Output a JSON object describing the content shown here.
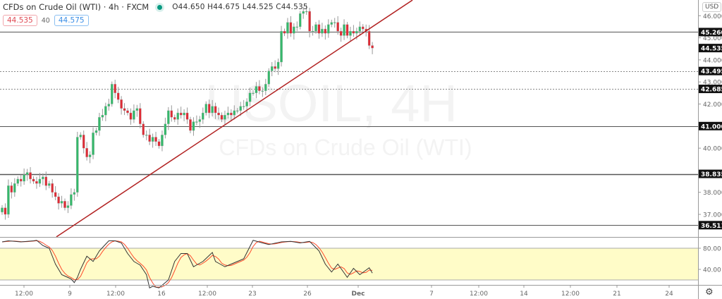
{
  "header": {
    "symbol_title": "CFDs on Crude Oil (WTI) · 4h · FXCM",
    "status_color": "#089981",
    "ohlc": "O44.650 H44.675 L44.525 C44.535",
    "sell_price": "44.535",
    "spread": "40",
    "buy_price": "44.575",
    "currency": "USD"
  },
  "watermark": {
    "symbol": "USOIL, 4H",
    "description": "CFDs on Crude Oil (WTI)"
  },
  "colors": {
    "up": "#35b86b",
    "down": "#de2b35",
    "trendline": "#b22222",
    "stoch_k": "#333333",
    "stoch_d": "#ff4b2b",
    "stoch_band": "#fffcc8"
  },
  "chart_data": [
    {
      "type": "candlestick",
      "price_axis": {
        "ticks": [
          "46.000",
          "45.000",
          "44.000",
          "43.000",
          "42.000",
          "40.000",
          "38.000",
          "37.000"
        ],
        "tick_values": [
          46,
          45,
          44,
          43,
          42,
          40,
          38,
          37
        ]
      },
      "time_axis": {
        "labels": [
          "12:00",
          "9",
          "12:00",
          "16",
          "12:00",
          "23",
          "26",
          "Dec",
          "7",
          "12:00",
          "14",
          "12:00",
          "21",
          "24"
        ]
      },
      "close": [
        37.3,
        37.0,
        38.3,
        38.0,
        38.4,
        38.6,
        38.5,
        38.8,
        38.9,
        38.6,
        38.5,
        38.4,
        38.6,
        38.7,
        38.3,
        38.4,
        38.0,
        37.8,
        37.5,
        37.6,
        37.3,
        37.4,
        37.9,
        38.0,
        40.5,
        40.6,
        40.0,
        39.6,
        39.7,
        40.7,
        40.8,
        41.4,
        41.5,
        41.9,
        42.0,
        42.9,
        42.5,
        42.2,
        41.8,
        41.7,
        41.6,
        41.3,
        41.7,
        41.8,
        41.1,
        40.6,
        40.6,
        40.3,
        40.5,
        40.3,
        40.1,
        40.6,
        41.1,
        41.7,
        41.4,
        41.3,
        41.6,
        41.5,
        41.6,
        41.3,
        40.8,
        41.2,
        41.2,
        41.3,
        41.6,
        42.0,
        41.6,
        41.9,
        41.6,
        41.5,
        41.3,
        41.5,
        41.6,
        41.5,
        41.7,
        41.7,
        41.9,
        41.9,
        42.1,
        42.5,
        42.5,
        42.8,
        42.6,
        42.6,
        42.9,
        43.5,
        43.7,
        43.6,
        43.9,
        45.3,
        45.2,
        45.7,
        45.2,
        45.5,
        45.5,
        46.1,
        46.2,
        46.2,
        45.3,
        45.3,
        45.6,
        45.2,
        45.4,
        45.2,
        45.6,
        45.7,
        45.7,
        45.3,
        45.1,
        45.6,
        45.1,
        45.3,
        45.2,
        45.3,
        45.5,
        45.4,
        45.3,
        44.65,
        44.535
      ],
      "last_open": 44.65,
      "horizontal_levels": [
        {
          "price": "45.260",
          "style": "solid"
        },
        {
          "price": "43.495",
          "style": "dotted"
        },
        {
          "price": "42.685",
          "style": "dotted"
        },
        {
          "price": "41.000",
          "style": "solid"
        },
        {
          "price": "38.835",
          "style": "solid"
        },
        {
          "price": "36.511",
          "style": "solid"
        }
      ],
      "current_price_label": "44.535",
      "trendline": {
        "from": {
          "bar": 17.3,
          "price": 35.98
        },
        "to": {
          "bar": 130.8,
          "price": 46.71
        }
      }
    },
    {
      "type": "line",
      "name": "stochastic",
      "y_ticks": [
        "80.00",
        "40.00"
      ],
      "band": [
        20,
        80
      ],
      "k_points": [
        [
          0,
          92
        ],
        [
          2,
          94
        ],
        [
          6,
          92
        ],
        [
          10,
          94
        ],
        [
          11,
          95
        ],
        [
          12,
          90
        ],
        [
          13,
          85
        ],
        [
          15,
          80
        ],
        [
          17,
          50
        ],
        [
          19,
          30
        ],
        [
          22,
          22
        ],
        [
          23,
          15
        ],
        [
          24,
          25
        ],
        [
          25,
          40
        ],
        [
          27,
          65
        ],
        [
          29,
          55
        ],
        [
          31,
          75
        ],
        [
          34,
          94
        ],
        [
          36,
          94
        ],
        [
          38,
          90
        ],
        [
          40,
          70
        ],
        [
          42,
          55
        ],
        [
          44,
          48
        ],
        [
          46,
          30
        ],
        [
          47,
          5
        ],
        [
          48,
          8
        ],
        [
          50,
          5
        ],
        [
          53,
          20
        ],
        [
          55,
          55
        ],
        [
          57,
          70
        ],
        [
          59,
          70
        ],
        [
          61,
          45
        ],
        [
          64,
          55
        ],
        [
          67,
          72
        ],
        [
          68,
          55
        ],
        [
          71,
          45
        ],
        [
          73,
          50
        ],
        [
          77,
          60
        ],
        [
          80,
          95
        ],
        [
          83,
          90
        ],
        [
          85,
          87
        ],
        [
          89,
          92
        ],
        [
          92,
          93
        ],
        [
          95,
          90
        ],
        [
          98,
          93
        ],
        [
          101,
          75
        ],
        [
          103,
          50
        ],
        [
          105,
          35
        ],
        [
          107,
          50
        ],
        [
          110,
          25
        ],
        [
          112,
          42
        ],
        [
          114,
          30
        ],
        [
          117,
          43
        ],
        [
          118,
          33
        ]
      ]
    }
  ]
}
